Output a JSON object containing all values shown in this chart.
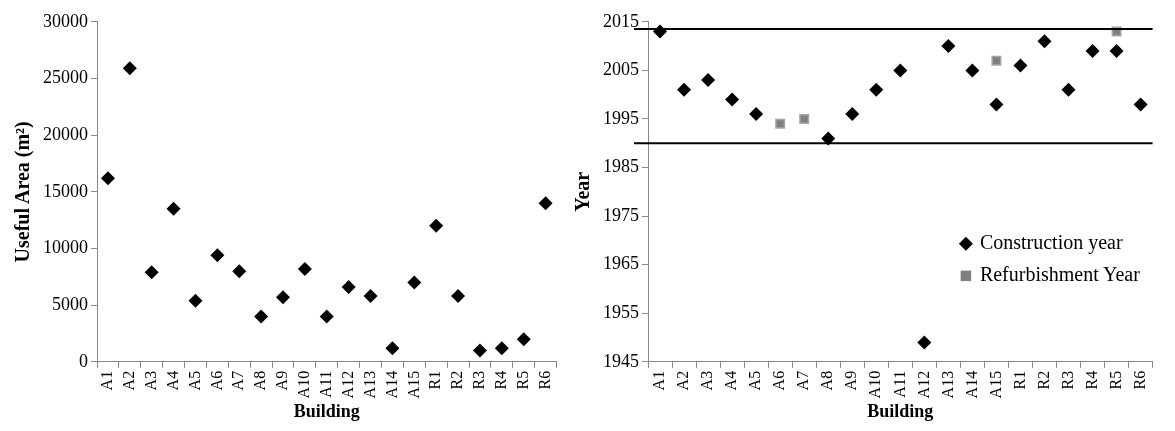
{
  "chart_data": [
    {
      "type": "scatter",
      "xlabel": "Building",
      "ylabel": "Useful Area (m²)",
      "categories": [
        "A1",
        "A2",
        "A3",
        "A4",
        "A5",
        "A6",
        "A7",
        "A8",
        "A9",
        "A10",
        "A11",
        "A12",
        "A13",
        "A14",
        "A15",
        "R1",
        "R2",
        "R3",
        "R4",
        "R5",
        "R6"
      ],
      "series": [
        {
          "color": "#000000",
          "marker": "diamond",
          "values": [
            16200,
            25900,
            7900,
            13500,
            5400,
            9400,
            8000,
            4000,
            5700,
            8200,
            4000,
            6600,
            5800,
            1200,
            7000,
            12000,
            5800,
            1000,
            1200,
            2000,
            14000
          ]
        }
      ],
      "ylim": [
        0,
        30000
      ],
      "yticks": [
        0,
        5000,
        10000,
        15000,
        20000,
        25000,
        30000
      ],
      "grid": false,
      "legend": false
    },
    {
      "type": "scatter",
      "xlabel": "Building",
      "ylabel": "Year",
      "categories": [
        "A1",
        "A2",
        "A3",
        "A4",
        "A5",
        "A6",
        "A7",
        "A8",
        "A9",
        "A10",
        "A11",
        "A12",
        "A13",
        "A14",
        "A15",
        "R1",
        "R2",
        "R3",
        "R4",
        "R5",
        "R6"
      ],
      "series": [
        {
          "name": "Construction year",
          "color": "#000000",
          "marker": "diamond",
          "values": [
            2013,
            2001,
            2003,
            1999,
            1996,
            null,
            null,
            1991,
            1996,
            2001,
            2005,
            1949,
            2010,
            2005,
            1998,
            2006,
            2011,
            2001,
            2009,
            2009,
            1998
          ]
        },
        {
          "name": "Refurbishment Year",
          "color": "#808080",
          "marker": "square",
          "values": [
            null,
            null,
            null,
            null,
            null,
            1994,
            1995,
            null,
            null,
            null,
            null,
            null,
            null,
            null,
            2007,
            null,
            null,
            null,
            null,
            2013,
            null
          ]
        }
      ],
      "ylim": [
        1945,
        2015
      ],
      "yticks": [
        1945,
        1955,
        1965,
        1975,
        1985,
        1995,
        2005,
        2015
      ],
      "grid": false,
      "legend": "bottom right",
      "ref_lines": [
        {
          "axis": "y",
          "value": 2013.5,
          "color": "#000000"
        },
        {
          "axis": "y",
          "value": 1990,
          "color": "#000000"
        }
      ]
    }
  ]
}
